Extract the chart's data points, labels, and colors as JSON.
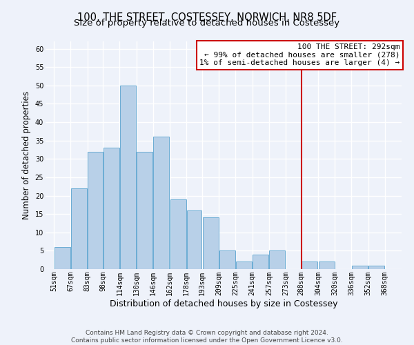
{
  "title": "100, THE STREET, COSTESSEY, NORWICH, NR8 5DF",
  "subtitle": "Size of property relative to detached houses in Costessey",
  "xlabel": "Distribution of detached houses by size in Costessey",
  "ylabel": "Number of detached properties",
  "bar_left_edges": [
    51,
    67,
    83,
    98,
    114,
    130,
    146,
    162,
    178,
    193,
    209,
    225,
    241,
    257,
    273,
    288,
    304,
    320,
    336,
    352
  ],
  "bar_widths": [
    16,
    16,
    15,
    16,
    16,
    16,
    16,
    16,
    15,
    16,
    16,
    16,
    16,
    16,
    15,
    16,
    16,
    16,
    16,
    16
  ],
  "bar_heights": [
    6,
    22,
    32,
    33,
    50,
    32,
    36,
    19,
    16,
    14,
    5,
    2,
    4,
    5,
    0,
    2,
    2,
    0,
    1,
    1
  ],
  "tick_labels": [
    "51sqm",
    "67sqm",
    "83sqm",
    "98sqm",
    "114sqm",
    "130sqm",
    "146sqm",
    "162sqm",
    "178sqm",
    "193sqm",
    "209sqm",
    "225sqm",
    "241sqm",
    "257sqm",
    "273sqm",
    "288sqm",
    "304sqm",
    "320sqm",
    "336sqm",
    "352sqm",
    "368sqm"
  ],
  "tick_positions": [
    51,
    67,
    83,
    98,
    114,
    130,
    146,
    162,
    178,
    193,
    209,
    225,
    241,
    257,
    273,
    288,
    304,
    320,
    336,
    352,
    368
  ],
  "bar_color": "#b8d0e8",
  "bar_edge_color": "#6aacd4",
  "reference_line_x": 288,
  "reference_line_color": "#cc0000",
  "annotation_line1": "100 THE STREET: 292sqm",
  "annotation_line2": "← 99% of detached houses are smaller (278)",
  "annotation_line3": "1% of semi-detached houses are larger (4) →",
  "ylim": [
    0,
    62
  ],
  "yticks": [
    0,
    5,
    10,
    15,
    20,
    25,
    30,
    35,
    40,
    45,
    50,
    55,
    60
  ],
  "footer_line1": "Contains HM Land Registry data © Crown copyright and database right 2024.",
  "footer_line2": "Contains public sector information licensed under the Open Government Licence v3.0.",
  "bg_color": "#eef2fa",
  "grid_color": "#ffffff",
  "title_fontsize": 10.5,
  "subtitle_fontsize": 9.5,
  "axis_label_fontsize": 8.5,
  "tick_fontsize": 7,
  "annot_fontsize": 8,
  "footer_fontsize": 6.5
}
